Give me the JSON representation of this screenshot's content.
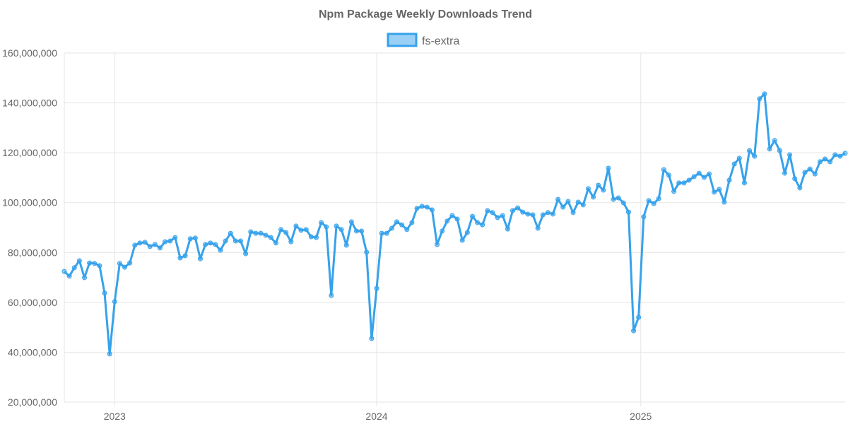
{
  "chart_data": {
    "type": "line",
    "title": "Npm Package Weekly Downloads Trend",
    "xlabel": "",
    "ylabel": "",
    "legend": {
      "position": "top",
      "entries": [
        "fs-extra"
      ]
    },
    "grid": true,
    "ylim": [
      20000000,
      160000000
    ],
    "y_ticks": [
      "20,000,000",
      "40,000,000",
      "60,000,000",
      "80,000,000",
      "100,000,000",
      "120,000,000",
      "140,000,000",
      "160,000,000"
    ],
    "y_tick_values": [
      20000000,
      40000000,
      60000000,
      80000000,
      100000000,
      120000000,
      140000000,
      160000000
    ],
    "x_ticks": [
      {
        "label": "2023",
        "date": "2023-01-01"
      },
      {
        "label": "2024",
        "date": "2023-12-31"
      },
      {
        "label": "2025",
        "date": "2025-01-01"
      }
    ],
    "x_start_date": "2022-10-23",
    "x_interval": "week",
    "series": [
      {
        "name": "fs-extra",
        "color": "#36A2EB",
        "fill": "#9AD0F5",
        "values": [
          72400000,
          70500000,
          73900000,
          76700000,
          69900000,
          75800000,
          75600000,
          74700000,
          63700000,
          39300000,
          60300000,
          75600000,
          74100000,
          75800000,
          82900000,
          83800000,
          84100000,
          82400000,
          83200000,
          81800000,
          84300000,
          84600000,
          86000000,
          77800000,
          78700000,
          85500000,
          85800000,
          77500000,
          83200000,
          83800000,
          83200000,
          80900000,
          84600000,
          87700000,
          84600000,
          84600000,
          79500000,
          88300000,
          87700000,
          87700000,
          86900000,
          86000000,
          83800000,
          89200000,
          88000000,
          84300000,
          90600000,
          88900000,
          89200000,
          86300000,
          86000000,
          92000000,
          90300000,
          62800000,
          90600000,
          89200000,
          82900000,
          92300000,
          88600000,
          88600000,
          80100000,
          45500000,
          65600000,
          87700000,
          87700000,
          89700000,
          92300000,
          91100000,
          89200000,
          92000000,
          97700000,
          98500000,
          98200000,
          97100000,
          83200000,
          88600000,
          92600000,
          94800000,
          93400000,
          84900000,
          88000000,
          94500000,
          92000000,
          91100000,
          96800000,
          96000000,
          94000000,
          94800000,
          89400000,
          96800000,
          97900000,
          96200000,
          95400000,
          95100000,
          89700000,
          95100000,
          96000000,
          95400000,
          101300000,
          98200000,
          100500000,
          96000000,
          100200000,
          99100000,
          105600000,
          102200000,
          107000000,
          105000000,
          113800000,
          101300000,
          101900000,
          99900000,
          96200000,
          48600000,
          54000000,
          94300000,
          100800000,
          99600000,
          101600000,
          113200000,
          111000000,
          104500000,
          107900000,
          107900000,
          109000000,
          110400000,
          111800000,
          110100000,
          111500000,
          104200000,
          105300000,
          100200000,
          109000000,
          115500000,
          117800000,
          107900000,
          120900000,
          118600000,
          141600000,
          143600000,
          121500000,
          124900000,
          120900000,
          111800000,
          119200000,
          109600000,
          105900000,
          112100000,
          113500000,
          111500000,
          116400000,
          117500000,
          116400000,
          119200000,
          118600000,
          119800000
        ]
      }
    ]
  }
}
